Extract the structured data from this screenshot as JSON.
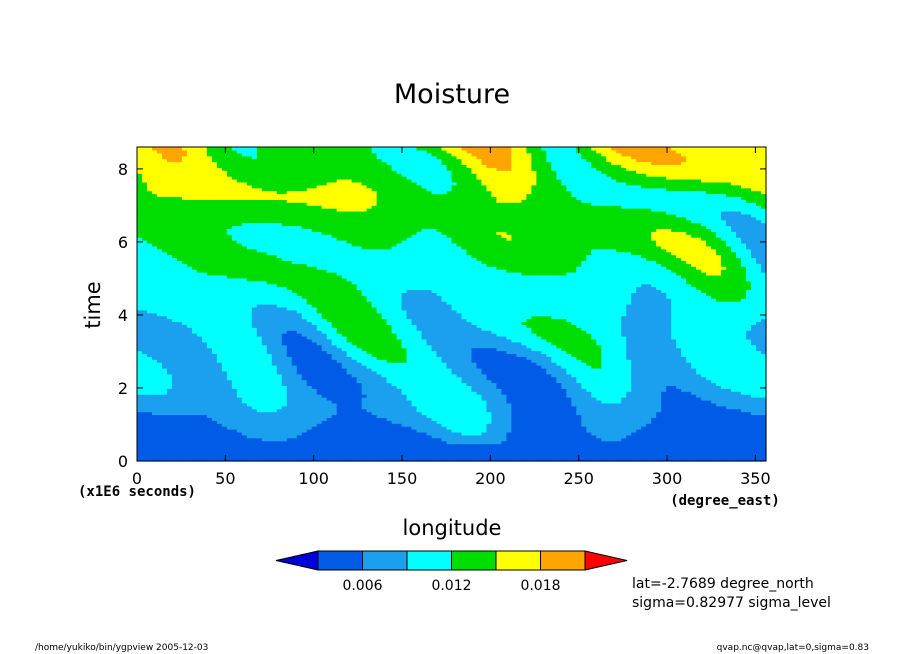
{
  "chart_data": {
    "type": "heatmap",
    "title": "Moisture",
    "xlabel": "longitude",
    "ylabel": "time",
    "x_unit": "(degree_east)",
    "y_unit": "(x1E6 seconds)",
    "xlim": [
      0,
      356
    ],
    "ylim": [
      0,
      8.6
    ],
    "x_ticks": [
      "0",
      "50",
      "100",
      "150",
      "200",
      "250",
      "300",
      "350"
    ],
    "y_ticks": [
      "0",
      "2",
      "4",
      "6",
      "8"
    ],
    "colorbar": {
      "levels": [
        0.003,
        0.006,
        0.009,
        0.012,
        0.015,
        0.018,
        0.021
      ],
      "tick_labels": [
        "0.006",
        "0.012",
        "0.018"
      ],
      "colors": [
        "#0000d8",
        "#005ce6",
        "#1aa0ee",
        "#00ffff",
        "#00dd00",
        "#ffff00",
        "#ffa500",
        "#ff0000"
      ],
      "extend": "both"
    },
    "fields": [
      {
        "t_range": [
          0,
          0.5
        ],
        "value": 0.0045
      },
      {
        "t_range": [
          0.5,
          8.6
        ],
        "value_range": [
          0.0045,
          0.0195
        ]
      }
    ],
    "annotations": {
      "lat": "lat=-2.7689 degree_north",
      "sigma": "sigma=0.82977 sigma_level"
    }
  },
  "footer": {
    "left": "/home/yukiko/bin/ygpview  2005-12-03",
    "right": "qvap.nc@qvap,lat=0,sigma=0.83"
  }
}
